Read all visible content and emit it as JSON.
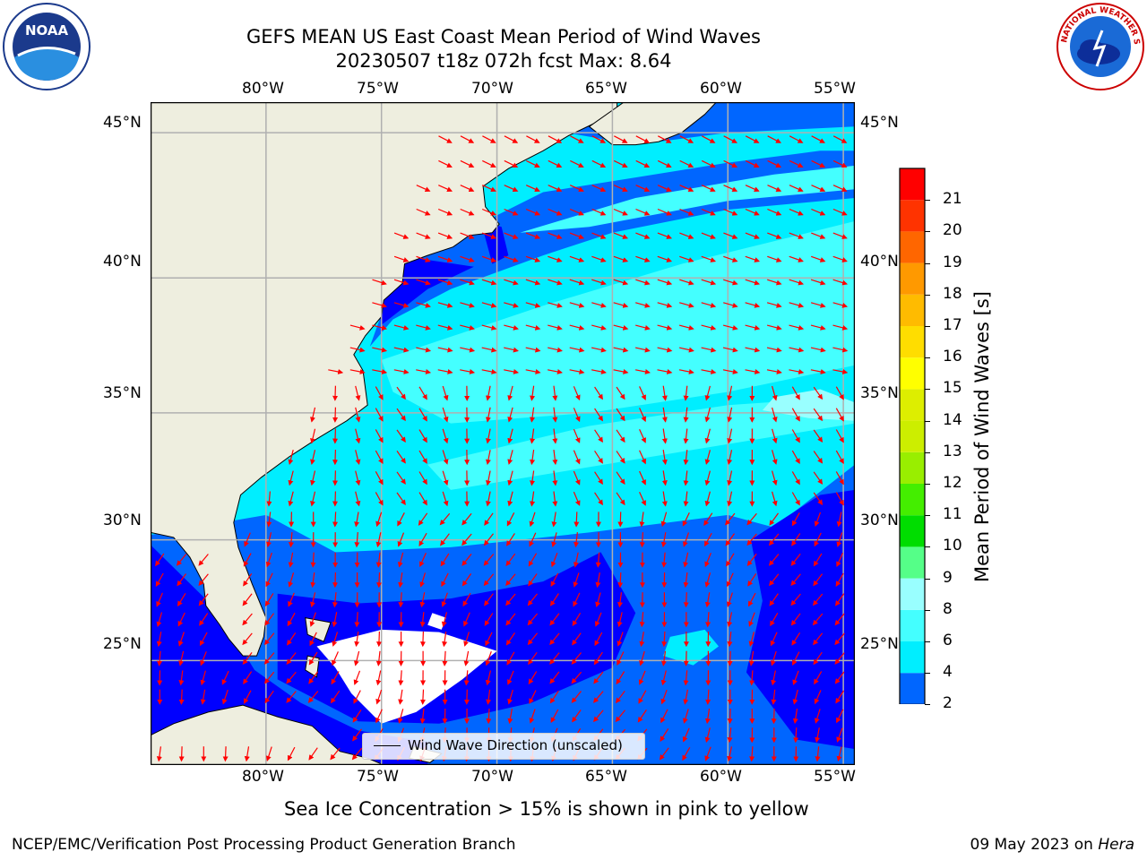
{
  "title": {
    "line1": "GEFS MEAN US East Coast Mean Period of Wind Waves",
    "line2": "20230507 t18z 072h fcst   Max: 8.64"
  },
  "logos": {
    "left": {
      "text": "NOAA",
      "icon": "noaa-logo-icon"
    },
    "right": {
      "text": "NATIONAL WEATHER SERVICE",
      "icon": "nws-logo-icon"
    }
  },
  "map": {
    "lon_labels": [
      "80°W",
      "75°W",
      "70°W",
      "65°W",
      "60°W",
      "55°W"
    ],
    "lat_labels": [
      "45°N",
      "40°N",
      "35°N",
      "30°N",
      "25°N"
    ],
    "extent": {
      "lon": [
        -85,
        -54.5
      ],
      "lat": [
        20.5,
        46
      ]
    },
    "land_color": "#eeeedf",
    "grid_color": "#b0b0b0",
    "arrow_color": "#ff0000",
    "missing_color": "#ffffff",
    "legend_text": "Wind Wave Direction (unscaled)"
  },
  "colorbar": {
    "label": "Mean Period of Wind Waves [s]",
    "ticks": [
      "2",
      "4",
      "6",
      "8",
      "9",
      "10",
      "11",
      "12",
      "13",
      "14",
      "15",
      "16",
      "17",
      "18",
      "19",
      "20",
      "21"
    ],
    "colors": [
      "#0066ff",
      "#00eeff",
      "#44ffff",
      "#99ffff",
      "#55ff88",
      "#00dd00",
      "#44ee00",
      "#99ee00",
      "#ccee00",
      "#ddee00",
      "#ffff00",
      "#ffdd00",
      "#ffbb00",
      "#ff9900",
      "#ff6600",
      "#ff3300",
      "#ff0000"
    ],
    "extend_color": "#0000ff"
  },
  "field_colors": {
    "p0": "#0000ff",
    "p2": "#0066ff",
    "p4": "#00eeff",
    "p6": "#44ffff",
    "p8": "#99ffff"
  },
  "note": "Sea Ice Concentration > 15% is shown in pink to yellow",
  "footer": {
    "left": "NCEP/EMC/Verification Post Processing Product Generation Branch",
    "right_date": "09 May 2023 on",
    "right_host": "Hera"
  }
}
